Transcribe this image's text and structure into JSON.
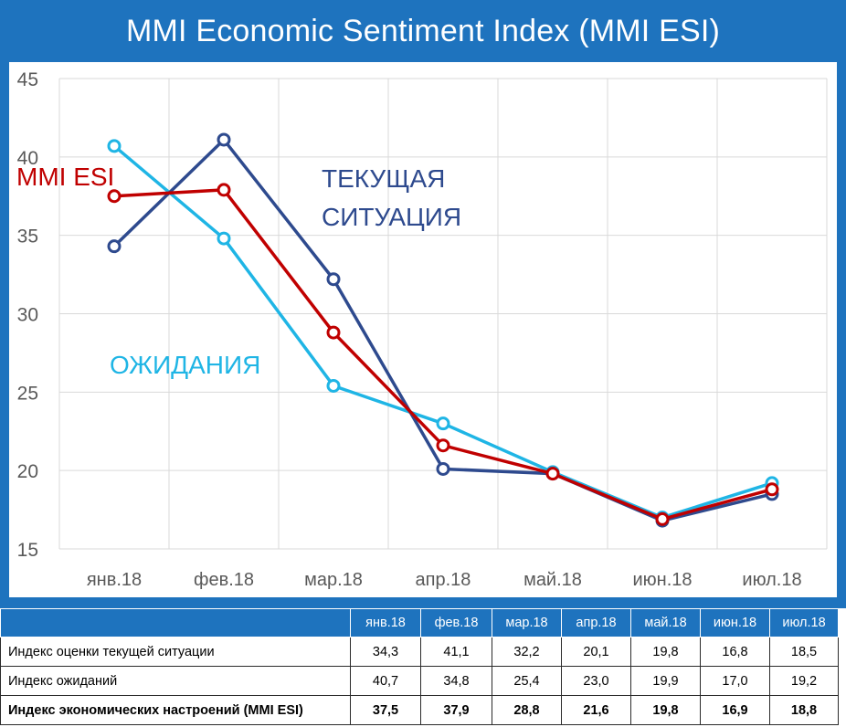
{
  "title": "MMI Economic Sentiment Index (MMI ESI)",
  "colors": {
    "background": "#1e73be",
    "current_situation": "#2e4a8e",
    "expectations": "#1fb5e5",
    "esi": "#c00000"
  },
  "chart_data": {
    "type": "line",
    "categories": [
      "янв.18",
      "фев.18",
      "мар.18",
      "апр.18",
      "май.18",
      "июн.18",
      "июл.18"
    ],
    "ylim": [
      15,
      45
    ],
    "yticks": [
      "45",
      "40",
      "35",
      "30",
      "25",
      "20",
      "15"
    ],
    "grid": true,
    "series": [
      {
        "name": "ТЕКУЩАЯ СИТУАЦИЯ",
        "label_lines": [
          "ТЕКУЩАЯ",
          "СИТУАЦИЯ"
        ],
        "color": "#2e4a8e",
        "values": [
          34.3,
          41.1,
          32.2,
          20.1,
          19.8,
          16.8,
          18.5
        ]
      },
      {
        "name": "ОЖИДАНИЯ",
        "label_lines": [
          "ОЖИДАНИЯ"
        ],
        "color": "#1fb5e5",
        "values": [
          40.7,
          34.8,
          25.4,
          23.0,
          19.9,
          17.0,
          19.2
        ]
      },
      {
        "name": "MMI ESI",
        "label_lines": [
          "MMI ESI"
        ],
        "color": "#c00000",
        "values": [
          37.5,
          37.9,
          28.8,
          21.6,
          19.8,
          16.9,
          18.8
        ]
      }
    ]
  },
  "table": {
    "headers": [
      "янв.18",
      "фев.18",
      "мар.18",
      "апр.18",
      "май.18",
      "июн.18",
      "июл.18"
    ],
    "rows": [
      {
        "label": "Индекс оценки текущей ситуации",
        "values": [
          "34,3",
          "41,1",
          "32,2",
          "20,1",
          "19,8",
          "16,8",
          "18,5"
        ]
      },
      {
        "label": "Индекс ожиданий",
        "values": [
          "40,7",
          "34,8",
          "25,4",
          "23,0",
          "19,9",
          "17,0",
          "19,2"
        ]
      },
      {
        "label": "Индекс экономических настроений (MMI ESI)",
        "values": [
          "37,5",
          "37,9",
          "28,8",
          "21,6",
          "19,8",
          "16,9",
          "18,8"
        ]
      }
    ]
  }
}
